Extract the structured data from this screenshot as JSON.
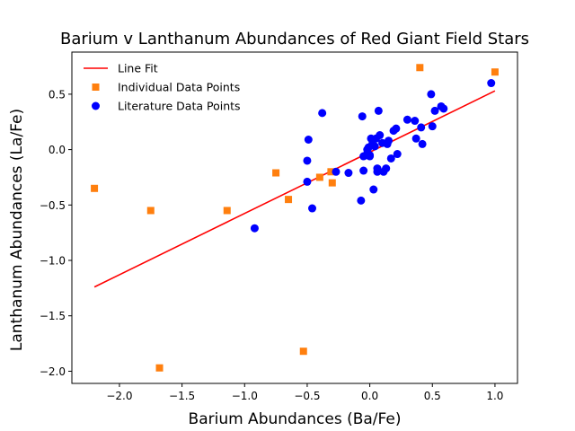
{
  "chart_data": {
    "type": "scatter",
    "title": "Barium v Lanthanum Abundances of Red Giant Field Stars",
    "xlabel": "Barium Abundances (Ba/Fe)",
    "ylabel": "Lanthanum Abundances (La/Fe)",
    "xlim": [
      -2.38,
      1.18
    ],
    "ylim": [
      -2.11,
      0.88
    ],
    "xticks": [
      -2.0,
      -1.5,
      -1.0,
      -0.5,
      0.0,
      0.5,
      1.0
    ],
    "xtick_labels": [
      "−2.0",
      "−1.5",
      "−1.0",
      "−0.5",
      "0.0",
      "0.5",
      "1.0"
    ],
    "yticks": [
      -2.0,
      -1.5,
      -1.0,
      -0.5,
      0.0,
      0.5
    ],
    "ytick_labels": [
      "−2.0",
      "−1.5",
      "−1.0",
      "−0.5",
      "0.0",
      "0.5"
    ],
    "grid": false,
    "legend_position": "top-left",
    "series": [
      {
        "name": "Line Fit",
        "kind": "line",
        "color": "#ff0000",
        "x": [
          -2.2,
          1.0
        ],
        "y": [
          -1.24,
          0.53
        ]
      },
      {
        "name": "Individual Data Points",
        "kind": "square",
        "color": "#ff7f0e",
        "x": [
          -2.2,
          -1.75,
          -1.68,
          -1.14,
          -0.75,
          -0.65,
          -0.53,
          -0.4,
          -0.31,
          -0.3,
          0.4,
          1.0
        ],
        "y": [
          -0.35,
          -0.55,
          -1.97,
          -0.55,
          -0.21,
          -0.45,
          -1.82,
          -0.25,
          -0.2,
          -0.3,
          0.74,
          0.7
        ]
      },
      {
        "name": "Literature Data Points",
        "kind": "circle",
        "color": "#0000ff",
        "x": [
          -0.92,
          -0.5,
          -0.5,
          -0.49,
          -0.46,
          -0.38,
          -0.27,
          -0.17,
          -0.07,
          -0.06,
          -0.05,
          -0.05,
          -0.03,
          -0.02,
          -0.01,
          0.0,
          0.0,
          0.01,
          0.02,
          0.03,
          0.04,
          0.05,
          0.06,
          0.06,
          0.07,
          0.08,
          0.1,
          0.11,
          0.13,
          0.14,
          0.15,
          0.17,
          0.19,
          0.21,
          0.22,
          0.3,
          0.36,
          0.37,
          0.41,
          0.42,
          0.49,
          0.5,
          0.52,
          0.57,
          0.59,
          0.97
        ],
        "y": [
          -0.71,
          -0.29,
          -0.1,
          0.09,
          -0.53,
          0.33,
          -0.2,
          -0.21,
          -0.46,
          0.3,
          -0.06,
          -0.19,
          -0.05,
          0.0,
          0.02,
          -0.05,
          -0.06,
          0.1,
          0.05,
          -0.36,
          0.03,
          0.1,
          -0.2,
          -0.17,
          0.35,
          0.13,
          0.06,
          -0.2,
          -0.17,
          0.05,
          0.08,
          -0.08,
          0.17,
          0.19,
          -0.04,
          0.27,
          0.26,
          0.1,
          0.2,
          0.05,
          0.5,
          0.21,
          0.35,
          0.39,
          0.37,
          0.6
        ]
      }
    ]
  }
}
